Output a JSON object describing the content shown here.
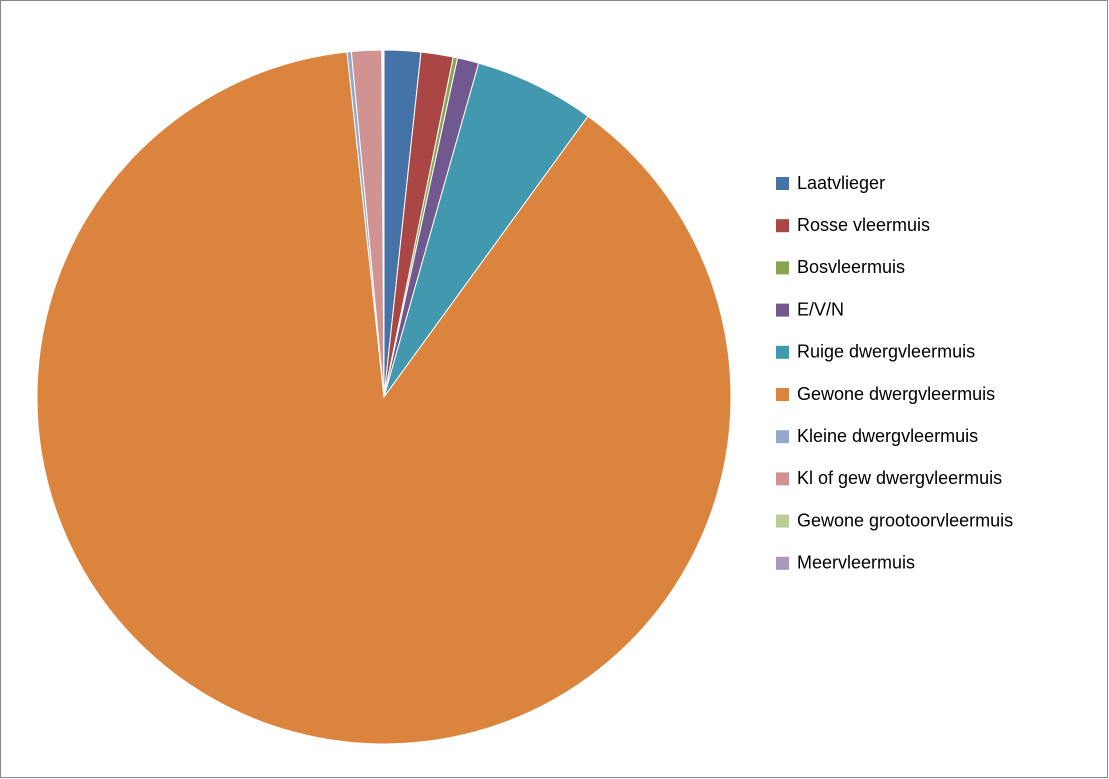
{
  "chart_data": {
    "type": "pie",
    "categories": [
      "Laatvlieger",
      "Rosse vleermuis",
      "Bosvleermuis",
      "E/V/N",
      "Ruige dwergvleermuis",
      "Gewone dwergvleermuis",
      "Kleine dwergvleermuis",
      "Kl of gew dwergvleermuis",
      "Gewone grootoorvleermuis",
      "Meervleermuis"
    ],
    "values": [
      1.7,
      1.5,
      0.2,
      1.0,
      5.6,
      88.3,
      0.2,
      1.4,
      0.05,
      0.05
    ],
    "colors": [
      "#4572A7",
      "#AA4643",
      "#89A54E",
      "#71588F",
      "#4198AF",
      "#DB843D",
      "#93A9CF",
      "#D19392",
      "#B9CD96",
      "#A99BBD"
    ],
    "legend": "right"
  }
}
